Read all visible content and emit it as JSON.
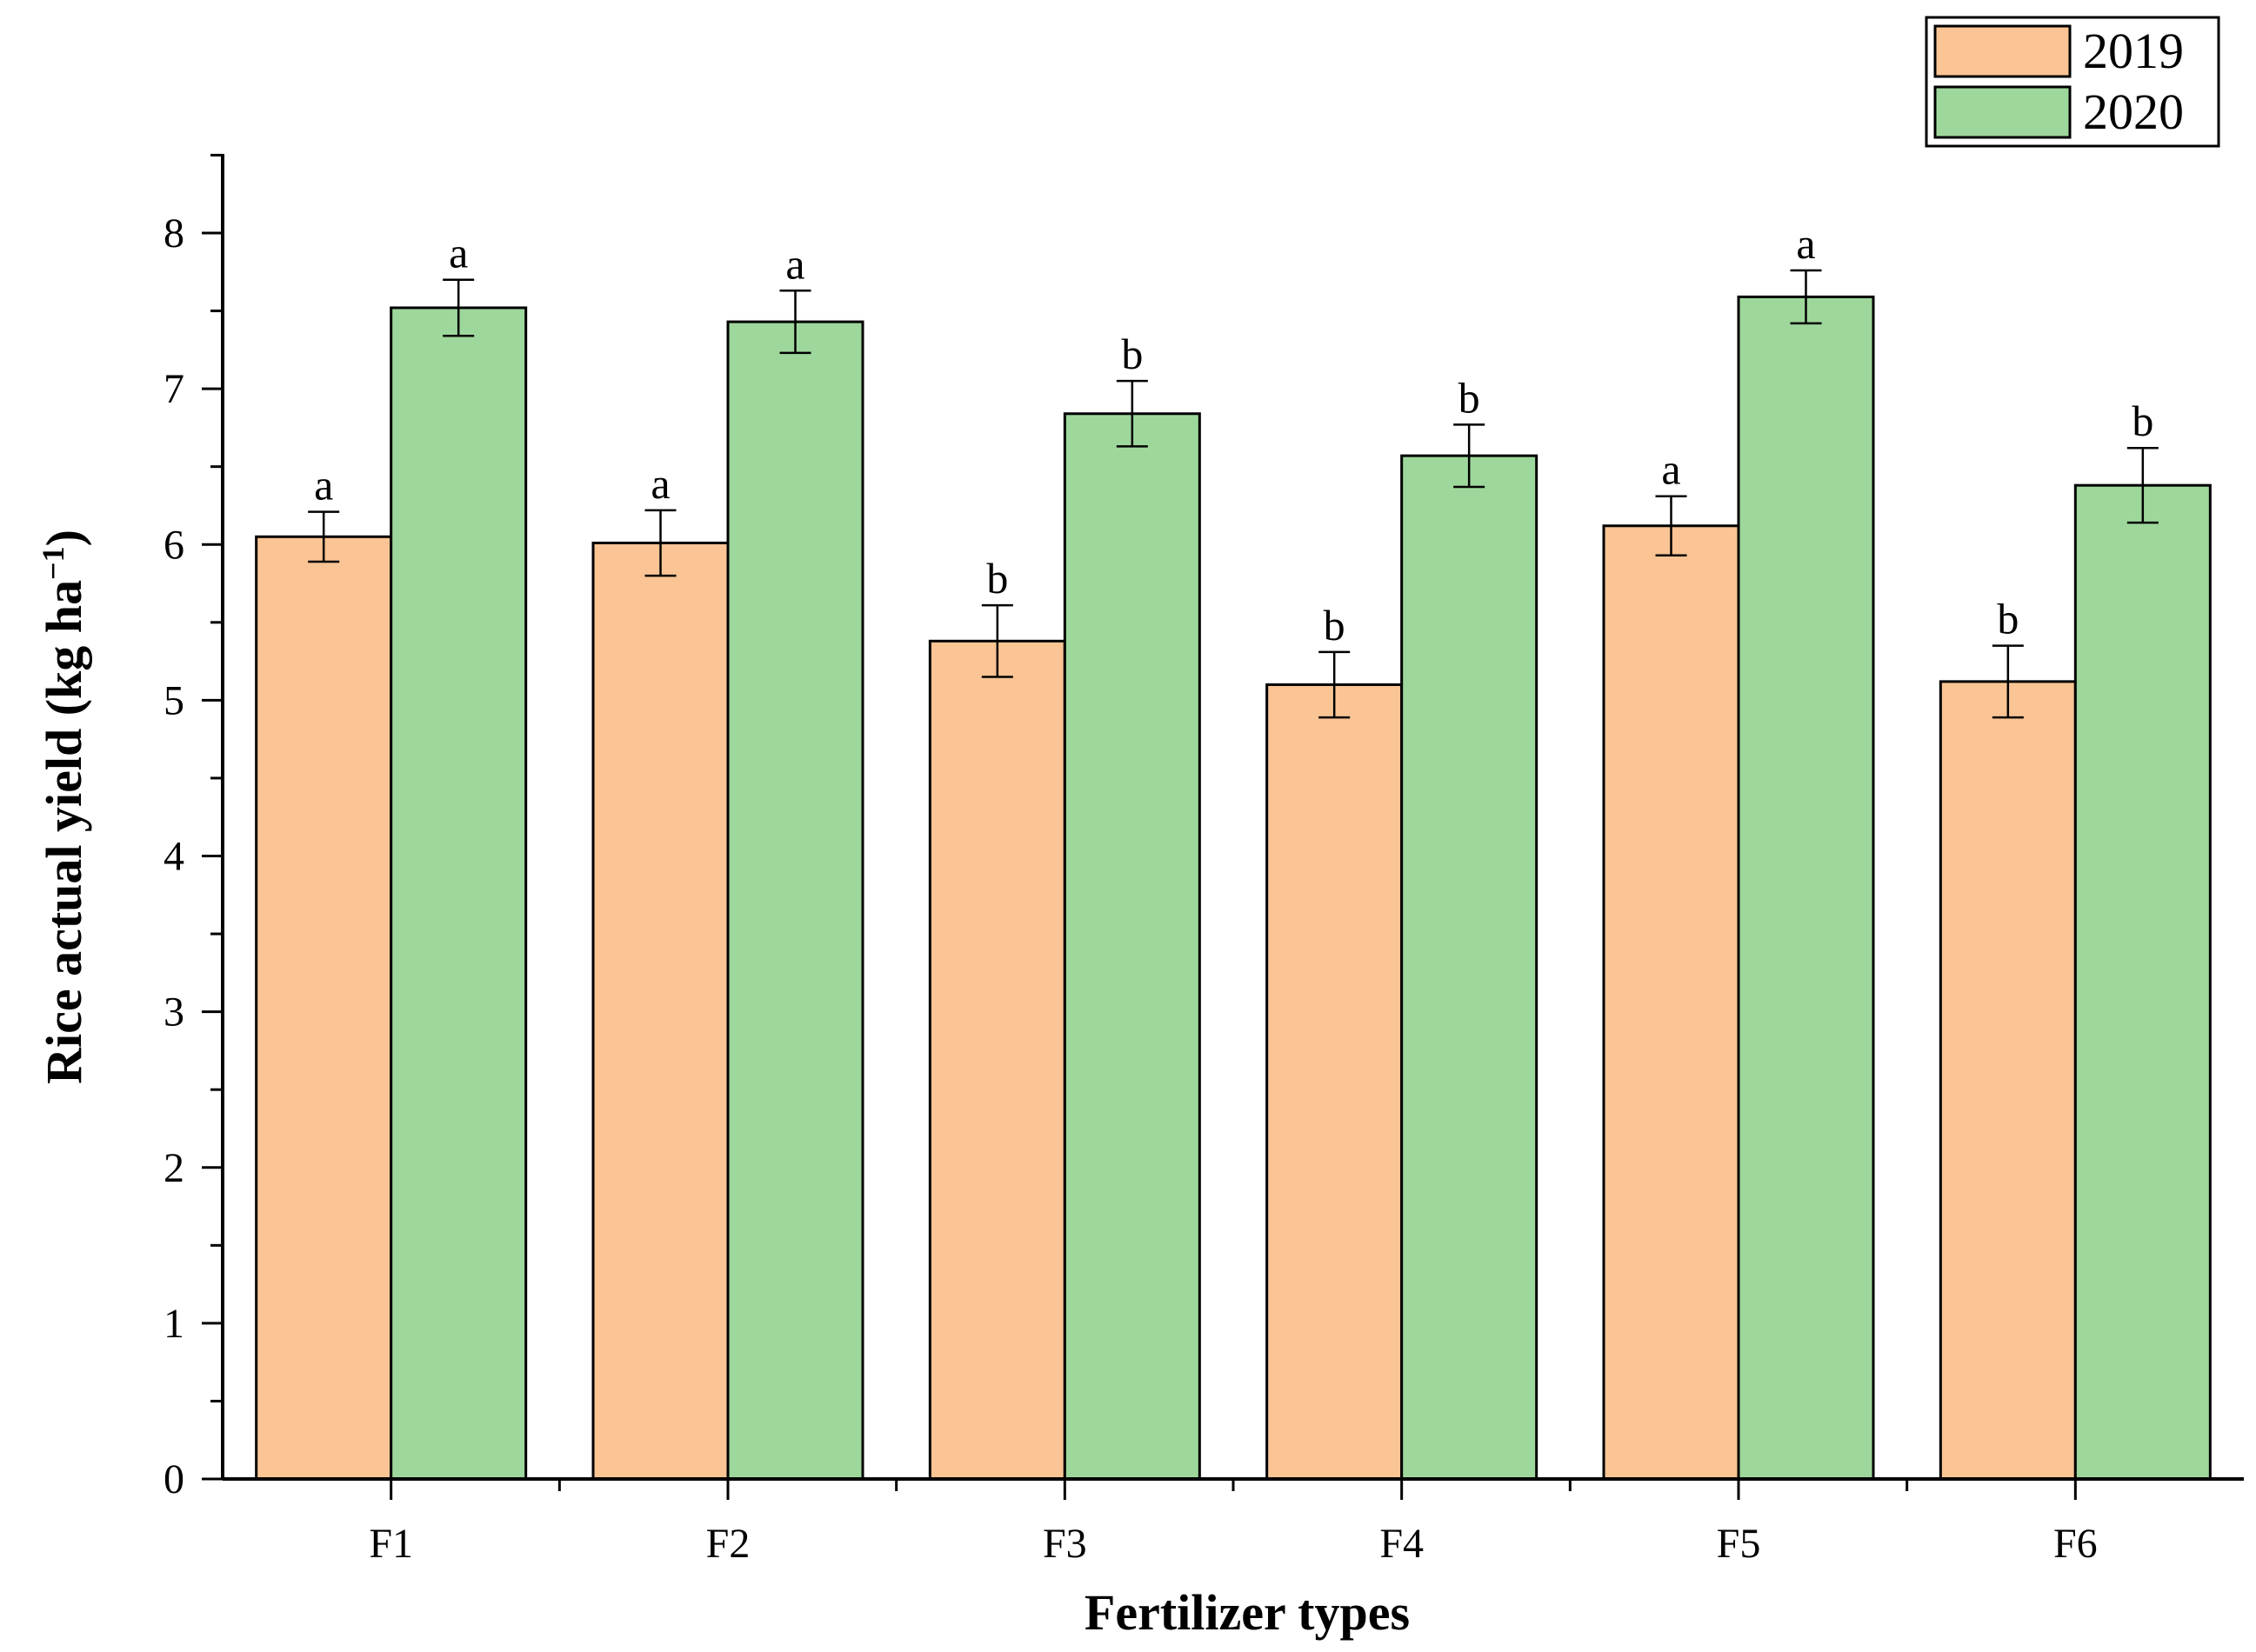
{
  "chart_data": {
    "type": "bar",
    "title": "",
    "xlabel": "Fertilizer types",
    "ylabel": {
      "main": "Rice actual yield (kg ha",
      "superscript": "−1",
      "close": ")"
    },
    "ylim": [
      0,
      8.5
    ],
    "yticks": [
      0,
      1,
      2,
      3,
      4,
      5,
      6,
      7,
      8
    ],
    "categories": [
      "F1",
      "F2",
      "F3",
      "F4",
      "F5",
      "F6"
    ],
    "series": [
      {
        "name": "2019",
        "color": "#fac494",
        "values": [
          6.05,
          6.01,
          5.38,
          5.1,
          6.12,
          5.12
        ],
        "errors": [
          0.16,
          0.21,
          0.23,
          0.21,
          0.19,
          0.23
        ],
        "significance": [
          "a",
          "a",
          "b",
          "b",
          "a",
          "b"
        ]
      },
      {
        "name": "2020",
        "color": "#9ed79b",
        "values": [
          7.52,
          7.43,
          6.84,
          6.57,
          7.59,
          6.38
        ],
        "errors": [
          0.18,
          0.2,
          0.21,
          0.2,
          0.17,
          0.24
        ],
        "significance": [
          "a",
          "a",
          "b",
          "b",
          "a",
          "b"
        ]
      }
    ],
    "legend_position": "top-right",
    "grid": false
  }
}
